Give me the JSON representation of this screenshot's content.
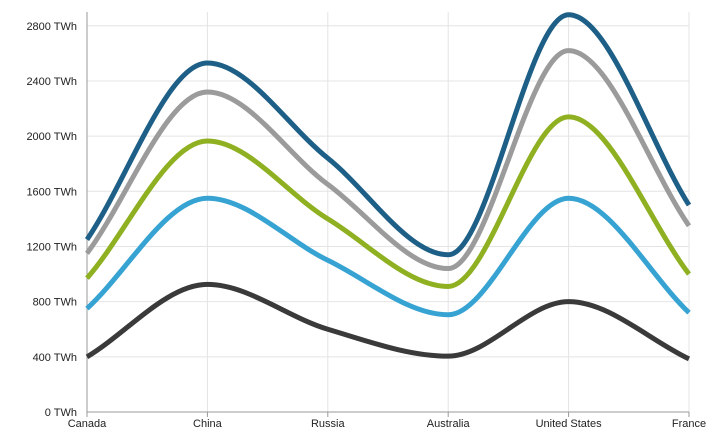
{
  "chart_data": {
    "type": "line",
    "title": "",
    "xlabel": "",
    "ylabel": "",
    "categories": [
      "Canada",
      "China",
      "Russia",
      "Australia",
      "United States",
      "France"
    ],
    "ylim": [
      0,
      2900
    ],
    "yticks": [
      {
        "value": 0,
        "label": "0 TWh"
      },
      {
        "value": 400,
        "label": "400 TWh"
      },
      {
        "value": 800,
        "label": "800 TWh"
      },
      {
        "value": 1200,
        "label": "1200 TWh"
      },
      {
        "value": 1600,
        "label": "1600 TWh"
      },
      {
        "value": 2000,
        "label": "2000 TWh"
      },
      {
        "value": 2400,
        "label": "2400 TWh"
      },
      {
        "value": 2800,
        "label": "2800 TWh"
      }
    ],
    "grid": true,
    "legend": "none",
    "smooth": true,
    "series": [
      {
        "color": "#1d5f86",
        "values": [
          1250,
          2530,
          1840,
          1140,
          2880,
          1500
        ]
      },
      {
        "color": "#9b9b9b",
        "values": [
          1150,
          2320,
          1650,
          1040,
          2620,
          1350
        ]
      },
      {
        "color": "#8fb021",
        "values": [
          970,
          1965,
          1400,
          910,
          2140,
          1000
        ]
      },
      {
        "color": "#36a3d3",
        "values": [
          750,
          1550,
          1100,
          705,
          1550,
          720
        ]
      },
      {
        "color": "#3a3a3a",
        "values": [
          400,
          925,
          600,
          405,
          800,
          385
        ]
      }
    ]
  }
}
